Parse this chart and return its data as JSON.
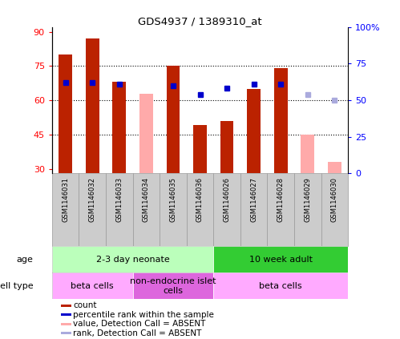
{
  "title": "GDS4937 / 1389310_at",
  "samples": [
    "GSM1146031",
    "GSM1146032",
    "GSM1146033",
    "GSM1146034",
    "GSM1146035",
    "GSM1146036",
    "GSM1146026",
    "GSM1146027",
    "GSM1146028",
    "GSM1146029",
    "GSM1146030"
  ],
  "count_values": [
    80,
    87,
    68,
    null,
    75,
    49,
    51,
    65,
    74,
    null,
    null
  ],
  "count_absent_values": [
    null,
    null,
    null,
    63,
    null,
    null,
    null,
    null,
    null,
    45,
    33
  ],
  "rank_values": [
    62,
    62,
    61,
    null,
    60,
    54,
    58,
    61,
    61,
    null,
    null
  ],
  "rank_absent_values": [
    null,
    null,
    null,
    null,
    null,
    null,
    null,
    null,
    null,
    54,
    50
  ],
  "ylim_left": [
    28,
    92
  ],
  "ylim_right": [
    0,
    100
  ],
  "yticks_left": [
    30,
    45,
    60,
    75,
    90
  ],
  "yticks_right": [
    0,
    25,
    50,
    75,
    100
  ],
  "ytick_labels_right": [
    "0",
    "25",
    "50",
    "75",
    "100%"
  ],
  "ytick_labels_left": [
    "30",
    "45",
    "60",
    "75",
    "90"
  ],
  "bar_color": "#BB2200",
  "bar_absent_color": "#FFAAAA",
  "rank_color": "#0000CC",
  "rank_absent_color": "#AAAADD",
  "age_groups": [
    {
      "label": "2-3 day neonate",
      "start": 0,
      "end": 5,
      "color": "#BBFFBB"
    },
    {
      "label": "10 week adult",
      "start": 6,
      "end": 10,
      "color": "#33CC33"
    }
  ],
  "cell_type_groups": [
    {
      "label": "beta cells",
      "start": 0,
      "end": 2,
      "color": "#FFAAFF"
    },
    {
      "label": "non-endocrine islet\ncells",
      "start": 3,
      "end": 5,
      "color": "#DD66DD"
    },
    {
      "label": "beta cells",
      "start": 6,
      "end": 10,
      "color": "#FFAAFF"
    }
  ],
  "legend_items": [
    {
      "label": "count",
      "color": "#BB2200"
    },
    {
      "label": "percentile rank within the sample",
      "color": "#0000CC"
    },
    {
      "label": "value, Detection Call = ABSENT",
      "color": "#FFAAAA"
    },
    {
      "label": "rank, Detection Call = ABSENT",
      "color": "#AAAADD"
    }
  ],
  "age_label": "age",
  "cell_type_label": "cell type",
  "bar_width": 0.5,
  "gridline_values": [
    45,
    60,
    75
  ],
  "sample_box_color": "#CCCCCC",
  "sample_box_edgecolor": "#999999"
}
